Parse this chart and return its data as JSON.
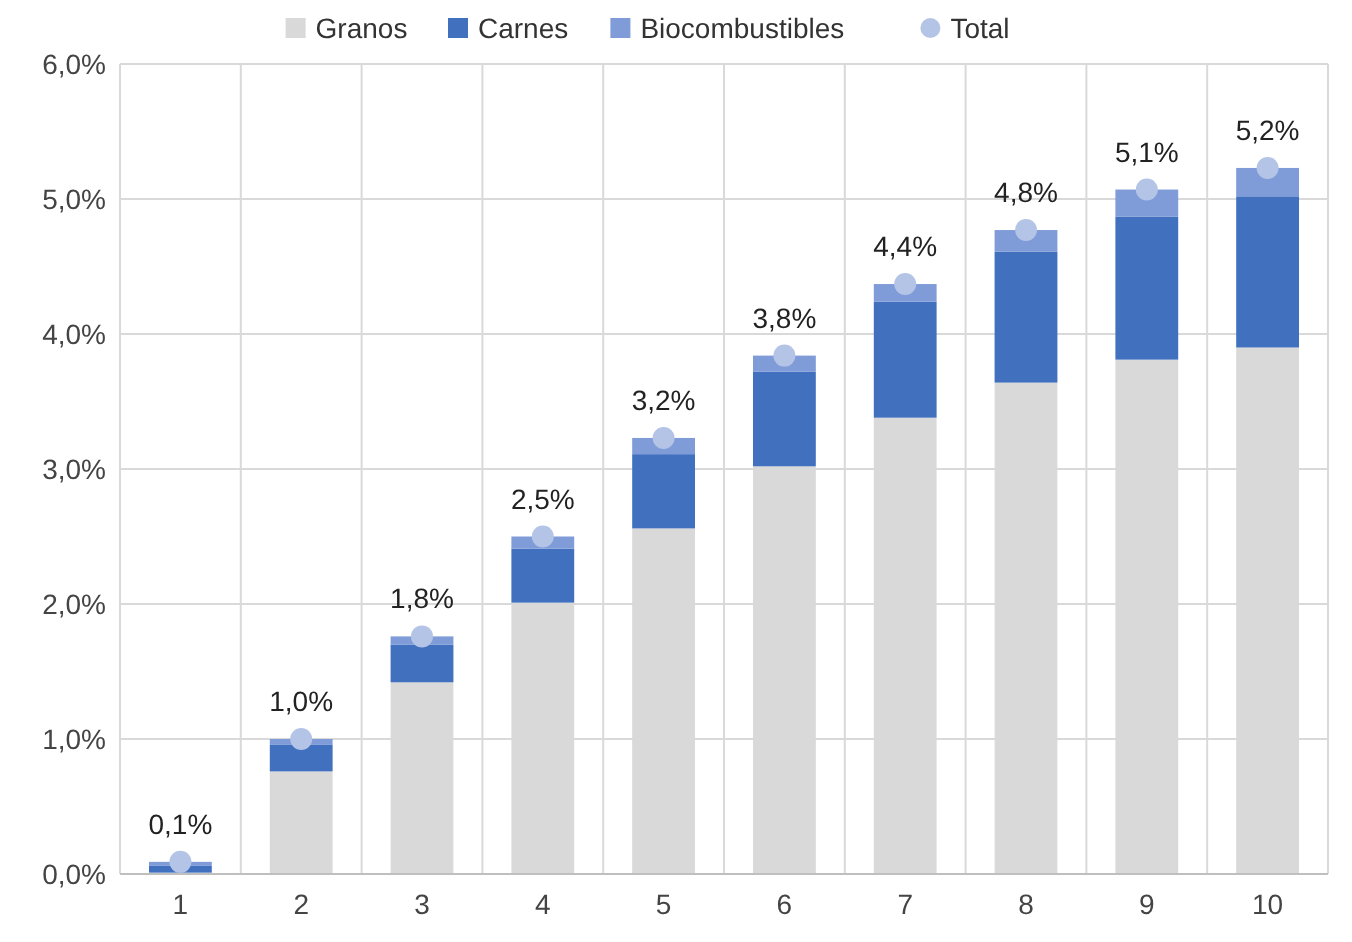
{
  "chart_data": {
    "type": "bar",
    "stacked": true,
    "categories": [
      "1",
      "2",
      "3",
      "4",
      "5",
      "6",
      "7",
      "8",
      "9",
      "10"
    ],
    "series": [
      {
        "name": "Granos",
        "color": "#d9d9d9",
        "values": [
          0.01,
          0.76,
          1.42,
          2.01,
          2.56,
          3.02,
          3.38,
          3.64,
          3.81,
          3.9
        ]
      },
      {
        "name": "Carnes",
        "color": "#4170bf",
        "values": [
          0.05,
          0.2,
          0.28,
          0.4,
          0.55,
          0.7,
          0.86,
          0.97,
          1.06,
          1.12
        ]
      },
      {
        "name": "Biocombustibles",
        "color": "#7f9bd8",
        "values": [
          0.03,
          0.04,
          0.06,
          0.09,
          0.12,
          0.12,
          0.13,
          0.16,
          0.2,
          0.21
        ]
      },
      {
        "name": "Total",
        "type": "scatter",
        "marker": "circle",
        "color": "#b4c4e6",
        "values": [
          0.09,
          1.0,
          1.76,
          2.5,
          3.23,
          3.84,
          4.37,
          4.77,
          5.07,
          5.23
        ],
        "value_labels": [
          "0,1%",
          "1,0%",
          "1,8%",
          "2,5%",
          "3,2%",
          "3,8%",
          "4,4%",
          "4,8%",
          "5,1%",
          "5,2%"
        ]
      }
    ],
    "ylim": [
      0,
      6
    ],
    "yticks": [
      {
        "value": 0,
        "label": "0,0%"
      },
      {
        "value": 1,
        "label": "1,0%"
      },
      {
        "value": 2,
        "label": "2,0%"
      },
      {
        "value": 3,
        "label": "3,0%"
      },
      {
        "value": 4,
        "label": "4,0%"
      },
      {
        "value": 5,
        "label": "5,0%"
      },
      {
        "value": 6,
        "label": "6,0%"
      }
    ],
    "grid": true,
    "legend": "top"
  }
}
